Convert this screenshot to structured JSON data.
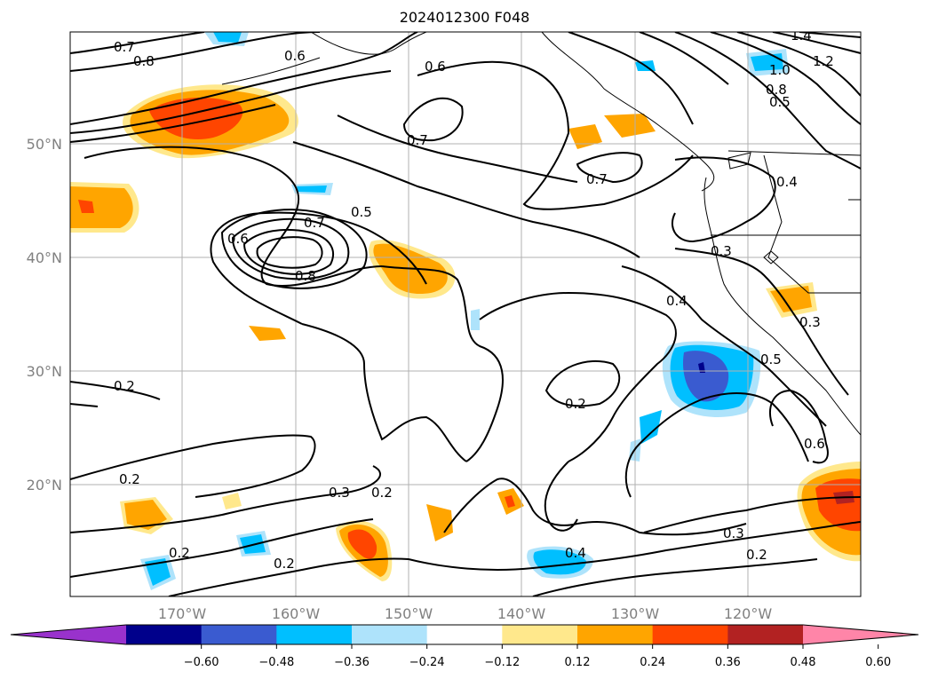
{
  "title": "2024012300 F048",
  "map": {
    "lon_labels": [
      "170°W",
      "160°W",
      "150°W",
      "140°W",
      "130°W",
      "120°W"
    ],
    "lat_labels": [
      "50°N",
      "40°N",
      "30°N",
      "20°N"
    ],
    "contour_labels": [
      "0.7",
      "0.8",
      "0.6",
      "0.6",
      "0.7",
      "0.7",
      "1.4",
      "1.2",
      "1.0",
      "0.8",
      "0.5",
      "0.7",
      "0.6",
      "0.8",
      "0.5",
      "0.4",
      "0.3",
      "0.4",
      "0.3",
      "0.5",
      "0.2",
      "0.2",
      "0.2",
      "0.6",
      "0.2",
      "0.3",
      "0.4",
      "0.2",
      "0.3",
      "0.2",
      "0.2"
    ]
  },
  "colorbar": {
    "ticks": [
      "−0.60",
      "−0.48",
      "−0.36",
      "−0.24",
      "−0.12",
      "0.12",
      "0.24",
      "0.36",
      "0.48",
      "0.60"
    ],
    "colors": [
      "#9932cc",
      "#00008b",
      "#3a5bd0",
      "#00bfff",
      "#aee3fb",
      "#ffffff",
      "#ffe88c",
      "#ffa500",
      "#ff4500",
      "#b22222",
      "#ff85a8"
    ]
  },
  "palette": {
    "light_yellow": "#ffe88c",
    "orange": "#ffa500",
    "red_orange": "#ff4500",
    "dark_red": "#b22222",
    "light_blue": "#aee3fb",
    "deep_sky_blue": "#00bfff",
    "royal_blue": "#3a5bd0",
    "navy": "#00008b"
  }
}
